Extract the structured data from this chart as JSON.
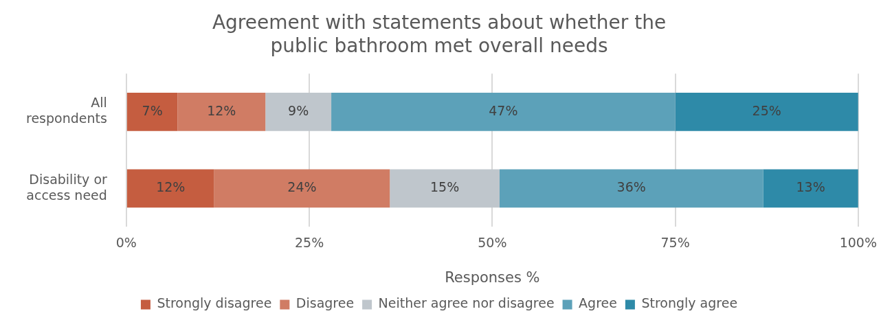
{
  "chart_data": {
    "type": "bar",
    "orientation": "horizontal",
    "stacked": true,
    "title": "Agreement with statements about whether the public bathroom met overall needs",
    "xlabel": "Responses %",
    "categories": [
      "All respondents",
      "Disability or access need"
    ],
    "series": [
      {
        "name": "Strongly disagree",
        "color": "#c55d40",
        "values": [
          7,
          12
        ],
        "value_labels": [
          "7%",
          "12%"
        ]
      },
      {
        "name": "Disagree",
        "color": "#d07c64",
        "values": [
          12,
          24
        ],
        "value_labels": [
          "12%",
          "24%"
        ]
      },
      {
        "name": "Neither agree nor disagree",
        "color": "#bfc6cc",
        "values": [
          9,
          15
        ],
        "value_labels": [
          "9%",
          "15%"
        ]
      },
      {
        "name": "Agree",
        "color": "#5ca1b9",
        "values": [
          47,
          36
        ],
        "value_labels": [
          "47%",
          "36%"
        ]
      },
      {
        "name": "Strongly agree",
        "color": "#2e8aa8",
        "values": [
          25,
          13
        ],
        "value_labels": [
          "25%",
          "13%"
        ]
      }
    ],
    "xlim": [
      0,
      100
    ],
    "xticks": [
      {
        "value": 0,
        "label": "0%"
      },
      {
        "value": 25,
        "label": "25%"
      },
      {
        "value": 50,
        "label": "50%"
      },
      {
        "value": 75,
        "label": "75%"
      },
      {
        "value": 100,
        "label": "100%"
      }
    ],
    "grid": "x",
    "legend": "bottom"
  }
}
